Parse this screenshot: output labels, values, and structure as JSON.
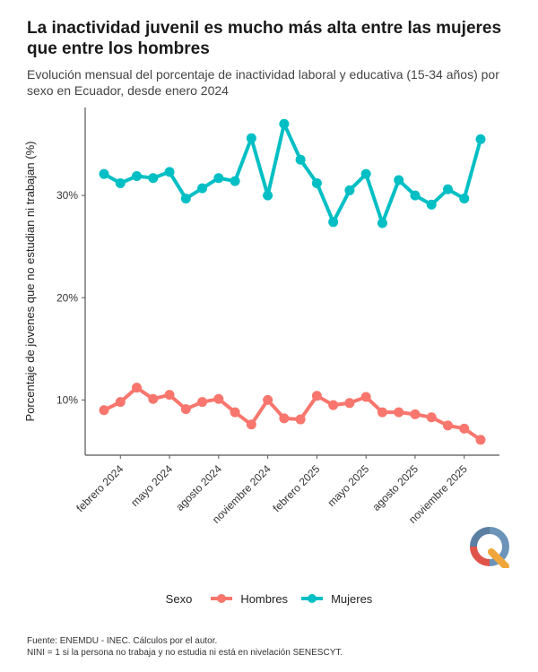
{
  "title": "La inactividad juvenil es mucho más alta entre las mujeres que entre los hombres",
  "subtitle": "Evolución mensual del porcentaje de inactividad laboral y educativa (15-34 años) por sexo en Ecuador, desde enero 2024",
  "caption": {
    "line1": "Fuente: ENEMDU - INEC. Cálculos por el autor.",
    "line2": "NINI = 1 si la persona no trabaja y no estudia ni está en nivelación SENESCYT."
  },
  "legend": {
    "title": "Sexo",
    "items": [
      {
        "label": "Hombres",
        "color": "#F8766D"
      },
      {
        "label": "Mujeres",
        "color": "#00BFC4"
      }
    ]
  },
  "logo": {
    "icon": "q-logo-icon",
    "colors": [
      "#5B7FA3",
      "#E0534A",
      "#F0A63A"
    ]
  },
  "chart_data": {
    "type": "line",
    "ylabel": "Porcentaje de jovenes que no estudian ni trabajan (%)",
    "xlabel": "",
    "x": [
      "2024-01",
      "2024-02",
      "2024-03",
      "2024-04",
      "2024-05",
      "2024-06",
      "2024-07",
      "2024-08",
      "2024-09",
      "2024-10",
      "2024-11",
      "2024-12",
      "2025-01",
      "2025-02",
      "2025-03",
      "2025-04",
      "2025-05",
      "2025-06",
      "2025-07",
      "2025-08",
      "2025-09",
      "2025-10",
      "2025-11",
      "2025-12"
    ],
    "xticks": [
      {
        "label": "febrero 2024",
        "x": "2024-02"
      },
      {
        "label": "mayo 2024",
        "x": "2024-05"
      },
      {
        "label": "agosto 2024",
        "x": "2024-08"
      },
      {
        "label": "noviembre 2024",
        "x": "2024-11"
      },
      {
        "label": "febrero 2025",
        "x": "2025-02"
      },
      {
        "label": "mayo 2025",
        "x": "2025-05"
      },
      {
        "label": "agosto 2025",
        "x": "2025-08"
      },
      {
        "label": "noviembre 2025",
        "x": "2025-11"
      }
    ],
    "yticks": [
      {
        "label": "10%",
        "value": 10
      },
      {
        "label": "20%",
        "value": 20
      },
      {
        "label": "30%",
        "value": 30
      }
    ],
    "ylim": [
      4.6,
      38.6
    ],
    "grid": false,
    "legend_position": "bottom",
    "series": [
      {
        "name": "Hombres",
        "color": "#F8766D",
        "values": [
          9.0,
          9.8,
          11.2,
          10.1,
          10.5,
          9.1,
          9.8,
          10.1,
          8.8,
          7.6,
          10.0,
          8.2,
          8.1,
          10.4,
          9.5,
          9.7,
          10.3,
          8.8,
          8.8,
          8.6,
          8.3,
          7.5,
          7.2,
          6.1
        ]
      },
      {
        "name": "Mujeres",
        "color": "#00BFC4",
        "values": [
          32.1,
          31.2,
          31.9,
          31.7,
          32.3,
          29.7,
          30.7,
          31.7,
          31.4,
          35.6,
          30.0,
          37.0,
          33.5,
          31.2,
          27.4,
          30.5,
          32.1,
          27.3,
          31.5,
          30.0,
          29.1,
          30.6,
          29.7,
          35.5
        ]
      }
    ]
  }
}
